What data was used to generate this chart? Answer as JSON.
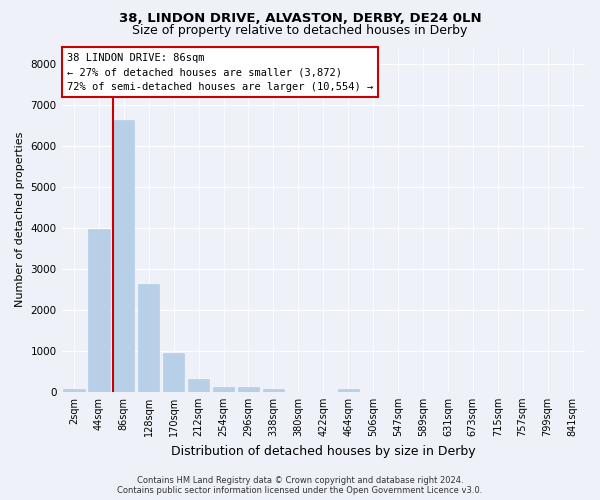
{
  "title_line1": "38, LINDON DRIVE, ALVASTON, DERBY, DE24 0LN",
  "title_line2": "Size of property relative to detached houses in Derby",
  "xlabel": "Distribution of detached houses by size in Derby",
  "ylabel": "Number of detached properties",
  "categories": [
    "2sqm",
    "44sqm",
    "86sqm",
    "128sqm",
    "170sqm",
    "212sqm",
    "254sqm",
    "296sqm",
    "338sqm",
    "380sqm",
    "422sqm",
    "464sqm",
    "506sqm",
    "547sqm",
    "589sqm",
    "631sqm",
    "673sqm",
    "715sqm",
    "757sqm",
    "799sqm",
    "841sqm"
  ],
  "values": [
    70,
    3980,
    6620,
    2620,
    950,
    320,
    120,
    110,
    80,
    0,
    0,
    80,
    0,
    0,
    0,
    0,
    0,
    0,
    0,
    0,
    0
  ],
  "bar_color": "#b8cfe8",
  "bar_edge_color": "#b8cfe8",
  "redline_index": 2,
  "annotation_title": "38 LINDON DRIVE: 86sqm",
  "annotation_line1": "← 27% of detached houses are smaller (3,872)",
  "annotation_line2": "72% of semi-detached houses are larger (10,554) →",
  "annotation_box_color": "#ffffff",
  "annotation_box_edgecolor": "#cc0000",
  "redline_color": "#cc0000",
  "ylim": [
    0,
    8400
  ],
  "yticks": [
    0,
    1000,
    2000,
    3000,
    4000,
    5000,
    6000,
    7000,
    8000
  ],
  "footer_line1": "Contains HM Land Registry data © Crown copyright and database right 2024.",
  "footer_line2": "Contains public sector information licensed under the Open Government Licence v3.0.",
  "background_color": "#eef2f8",
  "grid_color": "#ffffff",
  "title1_fontsize": 9.5,
  "title2_fontsize": 9,
  "ylabel_fontsize": 8,
  "xlabel_fontsize": 9,
  "tick_fontsize": 7,
  "annotation_fontsize": 7.5,
  "footer_fontsize": 6
}
